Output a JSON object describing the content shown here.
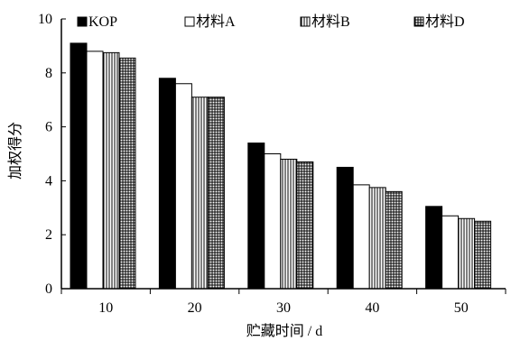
{
  "chart_data": {
    "type": "bar",
    "title": "",
    "xlabel": "贮藏时间 / d",
    "ylabel": "加权得分",
    "categories": [
      "10",
      "20",
      "30",
      "40",
      "50"
    ],
    "series": [
      {
        "name": "KOP",
        "values": [
          9.1,
          7.8,
          5.4,
          4.5,
          3.05
        ],
        "pattern": "solid"
      },
      {
        "name": "材料A",
        "values": [
          8.8,
          7.6,
          5.0,
          3.85,
          2.7
        ],
        "pattern": "white"
      },
      {
        "name": "材料B",
        "values": [
          8.75,
          7.1,
          4.8,
          3.75,
          2.6
        ],
        "pattern": "vertical-lines"
      },
      {
        "name": "材料D",
        "values": [
          8.55,
          7.1,
          4.7,
          3.6,
          2.5
        ],
        "pattern": "grid"
      }
    ],
    "ylim": [
      0,
      10
    ],
    "yticks": [
      0,
      2,
      4,
      6,
      8,
      10
    ],
    "grid": false,
    "legend_position": "top"
  },
  "colors": {
    "bar_stroke": "#000000",
    "solid_fill": "#000000",
    "white_fill": "#ffffff",
    "axis": "#000000"
  }
}
